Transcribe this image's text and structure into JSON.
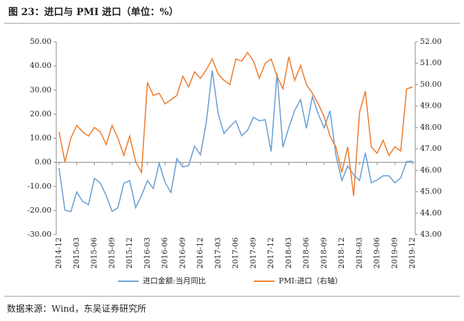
{
  "chart_data": {
    "type": "line",
    "title": "图 23：进口与 PMI 进口（单位：%）",
    "source": "数据来源：Wind，东吴证券研究所",
    "categories": [
      "2014-12",
      null,
      null,
      "2015-03",
      null,
      null,
      "2015-06",
      null,
      null,
      "2015-09",
      null,
      null,
      "2015-12",
      null,
      null,
      "2016-03",
      null,
      null,
      "2016-06",
      null,
      null,
      "2016-09",
      null,
      null,
      "2016-12",
      null,
      null,
      "2017-03",
      null,
      null,
      "2017-06",
      null,
      null,
      "2017-09",
      null,
      null,
      "2017-12",
      null,
      null,
      "2018-03",
      null,
      null,
      "2018-06",
      null,
      null,
      "2018-09",
      null,
      null,
      "2018-12",
      null,
      null,
      "2019-03",
      null,
      null,
      "2019-06",
      null,
      null,
      "2019-09",
      null,
      null,
      "2019-12"
    ],
    "series": [
      {
        "name": "进口金额:当月同比",
        "color": "#6a9fd4",
        "axis": "y",
        "values": [
          -2.4,
          -19.9,
          -20.5,
          -12.3,
          -16.2,
          -17.6,
          -6.7,
          -8.6,
          -13.8,
          -20.4,
          -18.8,
          -8.7,
          -7.6,
          -18.8,
          -13.8,
          -7.6,
          -10.9,
          -0.4,
          -8.4,
          -12.5,
          1.5,
          -1.9,
          -1.4,
          6.7,
          3.1,
          16.7,
          38.1,
          20.3,
          11.9,
          14.8,
          17.2,
          11.0,
          13.3,
          18.7,
          17.2,
          17.7,
          4.5,
          36.9,
          6.3,
          14.4,
          21.5,
          26.0,
          14.1,
          27.3,
          20.0,
          14.3,
          21.4,
          3.0,
          -7.6,
          -1.5,
          -5.2,
          -7.6,
          4.0,
          -8.5,
          -7.3,
          -5.6,
          -5.6,
          -8.5,
          -6.4,
          0.3,
          0.5
        ]
      },
      {
        "name": "PMI:进口（右轴）",
        "color": "#ed7d31",
        "axis": "y2",
        "values": [
          47.8,
          46.4,
          47.5,
          48.1,
          47.8,
          47.6,
          48.0,
          47.8,
          47.2,
          48.1,
          47.5,
          46.7,
          47.6,
          46.4,
          45.9,
          50.1,
          49.5,
          49.6,
          49.1,
          49.3,
          49.5,
          50.4,
          49.9,
          50.6,
          50.3,
          50.7,
          51.2,
          50.5,
          50.2,
          50.0,
          51.2,
          51.1,
          51.5,
          51.1,
          50.3,
          51.0,
          51.2,
          50.4,
          49.8,
          51.3,
          50.2,
          50.9,
          50.0,
          49.6,
          49.1,
          48.5,
          47.6,
          47.1,
          45.9,
          47.1,
          44.8,
          48.7,
          49.7,
          47.1,
          46.8,
          47.4,
          46.7,
          47.1,
          46.9,
          49.8,
          49.9
        ]
      }
    ],
    "ylim": [
      -30,
      50
    ],
    "yticks": [
      {
        "value": -30,
        "label": "-30.00"
      },
      {
        "value": -20,
        "label": "-20.00"
      },
      {
        "value": -10,
        "label": "-10.00"
      },
      {
        "value": 0,
        "label": "0.00"
      },
      {
        "value": 10,
        "label": "10.00"
      },
      {
        "value": 20,
        "label": "20.00"
      },
      {
        "value": 30,
        "label": "30.00"
      },
      {
        "value": 40,
        "label": "40.00"
      },
      {
        "value": 50,
        "label": "50.00"
      }
    ],
    "y2lim": [
      43,
      52
    ],
    "y2ticks": [
      {
        "value": 43,
        "label": "43.00"
      },
      {
        "value": 44,
        "label": "44.00"
      },
      {
        "value": 45,
        "label": "45.00"
      },
      {
        "value": 46,
        "label": "46.00"
      },
      {
        "value": 47,
        "label": "47.00"
      },
      {
        "value": 48,
        "label": "48.00"
      },
      {
        "value": 49,
        "label": "49.00"
      },
      {
        "value": 50,
        "label": "50.00"
      },
      {
        "value": 51,
        "label": "51.00"
      },
      {
        "value": 52,
        "label": "52.00"
      }
    ],
    "grid": false
  }
}
